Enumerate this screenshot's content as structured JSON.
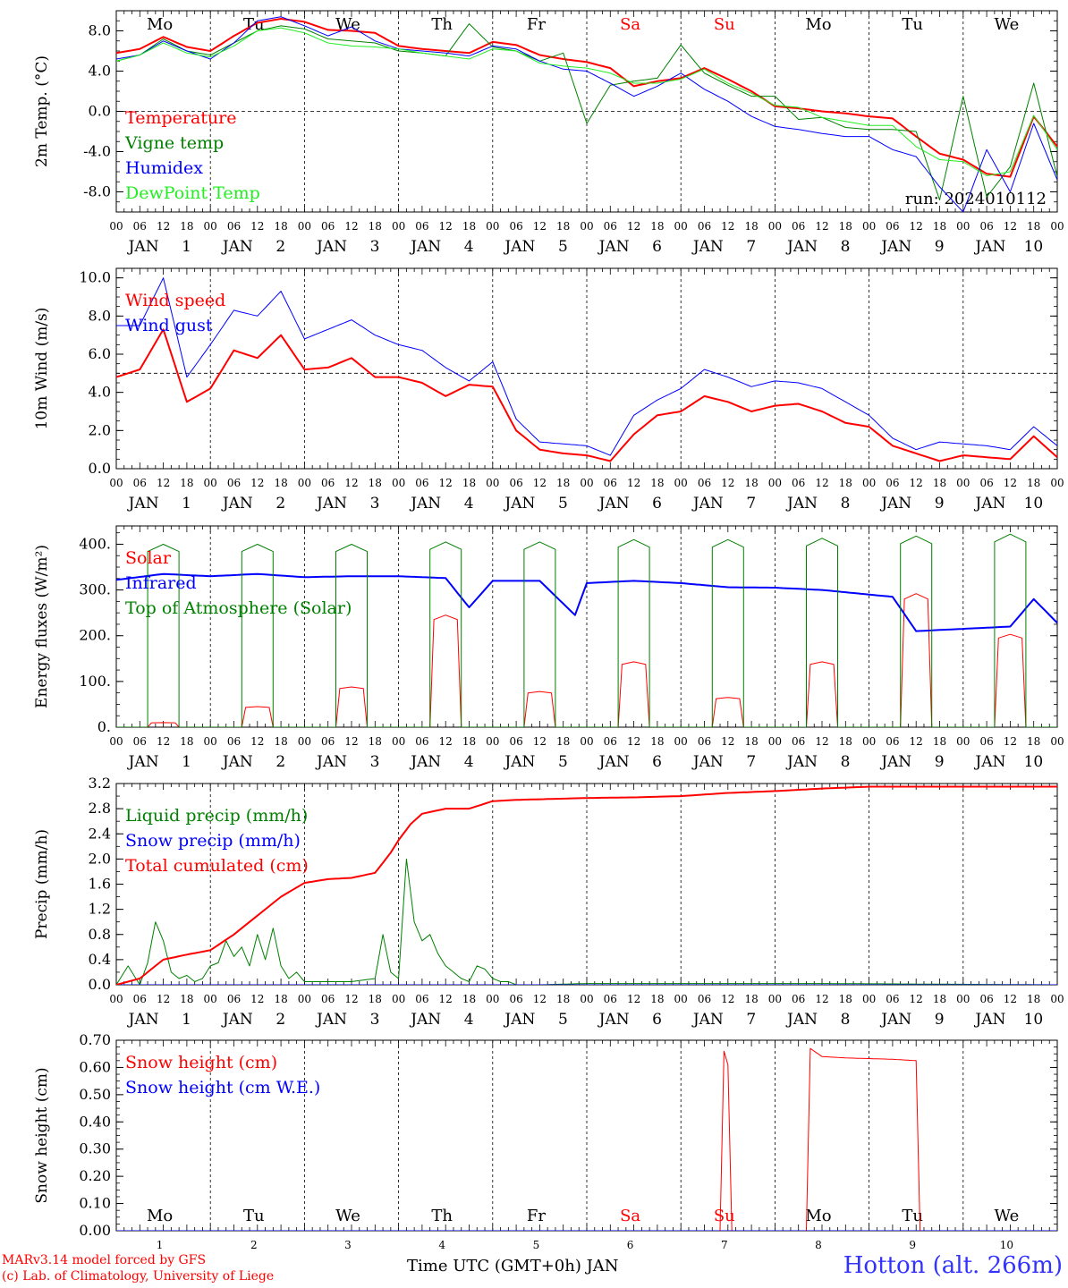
{
  "days": [
    {
      "dow": "Mo",
      "date": "1",
      "weekend": false
    },
    {
      "dow": "Tu",
      "date": "2",
      "weekend": false
    },
    {
      "dow": "We",
      "date": "3",
      "weekend": false
    },
    {
      "dow": "Th",
      "date": "4",
      "weekend": false
    },
    {
      "dow": "Fr",
      "date": "5",
      "weekend": false
    },
    {
      "dow": "Sa",
      "date": "6",
      "weekend": true
    },
    {
      "dow": "Su",
      "date": "7",
      "weekend": true
    },
    {
      "dow": "Mo",
      "date": "8",
      "weekend": false
    },
    {
      "dow": "Tu",
      "date": "9",
      "weekend": false
    },
    {
      "dow": "We",
      "date": "10",
      "weekend": false
    }
  ],
  "month": "JAN",
  "hour_ticks": [
    "00",
    "06",
    "12",
    "18"
  ],
  "hour_tick_end": "00",
  "colors": {
    "red": "#ff0000",
    "green": "#008000",
    "blue": "#0000ff",
    "lime": "#22ee22",
    "weekend": "#ff0000",
    "site": "#3333ff"
  },
  "footer": {
    "credit_line1": "MARv3.14 model forced by GFS",
    "credit_line2": "(c) Lab. of Climatology, University of Liege",
    "xaxis_title": "Time UTC (GMT+0h) JAN",
    "site": "Hotton (alt. 266m)"
  },
  "chart_data": [
    {
      "id": "temperature",
      "type": "line",
      "ylabel": "2m Temp. (°C)",
      "ylim": [
        -10,
        10
      ],
      "yticks": [
        -8,
        -4,
        0,
        4,
        8
      ],
      "ytick_labels": [
        "-8.0",
        "-4.0",
        "0.0",
        "4.0",
        "8.0"
      ],
      "dashed_ref": 0,
      "run_label": "run: 2024010112",
      "x_unit": "hours since 2024-01-01 00 UTC",
      "series": [
        {
          "name": "Temperature",
          "color": "red",
          "stroke": 2,
          "x": [
            0,
            6,
            12,
            18,
            24,
            30,
            36,
            42,
            48,
            54,
            60,
            66,
            72,
            78,
            84,
            90,
            96,
            102,
            108,
            114,
            120,
            126,
            132,
            138,
            144,
            150,
            156,
            162,
            168,
            174,
            180,
            186,
            192,
            198,
            204,
            210,
            216,
            222,
            228,
            234,
            240
          ],
          "y": [
            5.8,
            6.2,
            7.4,
            6.4,
            6.0,
            7.5,
            8.8,
            9.2,
            8.9,
            8.1,
            8.0,
            7.8,
            6.5,
            6.2,
            6.0,
            5.8,
            6.9,
            6.6,
            5.6,
            5.2,
            4.9,
            4.3,
            2.5,
            3.0,
            3.3,
            4.3,
            3.2,
            2.0,
            0.5,
            0.3,
            0.0,
            -0.2,
            -0.5,
            -0.7,
            -2.5,
            -4.2,
            -4.8,
            -6.2,
            -6.5,
            -0.5,
            -3.5
          ]
        },
        {
          "name": "Vigne temp",
          "color": "green",
          "stroke": 1,
          "x": [
            0,
            6,
            12,
            18,
            24,
            30,
            36,
            42,
            48,
            54,
            60,
            66,
            72,
            78,
            84,
            90,
            96,
            102,
            108,
            114,
            120,
            126,
            132,
            138,
            144,
            150,
            156,
            162,
            168,
            174,
            180,
            186,
            192,
            198,
            204,
            210,
            216,
            222,
            228,
            234,
            240
          ],
          "y": [
            5.0,
            5.6,
            7.2,
            6.0,
            5.6,
            6.8,
            8.0,
            8.5,
            8.2,
            7.2,
            7.0,
            6.8,
            6.0,
            5.8,
            5.5,
            8.7,
            6.4,
            6.0,
            5.0,
            5.8,
            -1.2,
            2.6,
            3.0,
            3.3,
            6.6,
            3.8,
            2.6,
            1.5,
            1.5,
            -0.8,
            -0.6,
            -1.6,
            -1.8,
            -1.8,
            -2.0,
            -8.8,
            1.5,
            -8.5,
            -5.5,
            2.8,
            -6.5
          ]
        },
        {
          "name": "Humidex",
          "color": "blue",
          "stroke": 1,
          "x": [
            0,
            6,
            12,
            18,
            24,
            30,
            36,
            42,
            48,
            54,
            60,
            66,
            72,
            78,
            84,
            90,
            96,
            102,
            108,
            114,
            120,
            126,
            132,
            138,
            144,
            150,
            156,
            162,
            168,
            174,
            180,
            186,
            192,
            198,
            204,
            210,
            216,
            222,
            228,
            234,
            240
          ],
          "y": [
            5.2,
            5.6,
            7.0,
            6.0,
            5.2,
            6.8,
            9.0,
            9.4,
            8.5,
            7.5,
            8.4,
            7.0,
            6.2,
            6.0,
            5.8,
            5.5,
            6.5,
            6.2,
            5.0,
            4.2,
            4.0,
            2.8,
            1.5,
            2.5,
            3.8,
            2.2,
            1.0,
            -0.5,
            -1.5,
            -1.8,
            -2.2,
            -2.5,
            -2.5,
            -3.8,
            -4.5,
            -7.5,
            -10.0,
            -3.8,
            -8.0,
            -1.2,
            -6.8
          ]
        },
        {
          "name": "DewPoint Temp",
          "color": "lime",
          "stroke": 1,
          "x": [
            0,
            6,
            12,
            18,
            24,
            30,
            36,
            42,
            48,
            54,
            60,
            66,
            72,
            78,
            84,
            90,
            96,
            102,
            108,
            114,
            120,
            126,
            132,
            138,
            144,
            150,
            156,
            162,
            168,
            174,
            180,
            186,
            192,
            198,
            204,
            210,
            216,
            222,
            228,
            234,
            240
          ],
          "y": [
            5.0,
            5.6,
            6.8,
            5.8,
            5.4,
            6.5,
            8.0,
            8.3,
            7.8,
            6.8,
            6.5,
            6.4,
            6.2,
            5.8,
            5.5,
            5.2,
            6.2,
            6.0,
            4.8,
            4.5,
            4.3,
            3.8,
            2.8,
            2.8,
            3.2,
            4.2,
            2.8,
            1.8,
            0.6,
            0.4,
            -0.6,
            -1.0,
            -1.4,
            -1.4,
            -3.5,
            -4.8,
            -5.0,
            -6.4,
            -6.0,
            -0.4,
            -3.8
          ]
        }
      ]
    },
    {
      "id": "wind",
      "type": "line",
      "ylabel": "10m Wind (m/s)",
      "ylim": [
        0,
        10.5
      ],
      "yticks": [
        0,
        2,
        4,
        6,
        8,
        10
      ],
      "ytick_labels": [
        "0.0",
        "2.0",
        "4.0",
        "6.0",
        "8.0",
        "10.0"
      ],
      "dashed_ref": 5,
      "x_unit": "hours since 2024-01-01 00 UTC",
      "series": [
        {
          "name": "Wind speed",
          "color": "red",
          "stroke": 2,
          "x": [
            0,
            6,
            12,
            18,
            24,
            30,
            36,
            42,
            48,
            54,
            60,
            66,
            72,
            78,
            84,
            90,
            96,
            102,
            108,
            114,
            120,
            126,
            132,
            138,
            144,
            150,
            156,
            162,
            168,
            174,
            180,
            186,
            192,
            198,
            204,
            210,
            216,
            222,
            228,
            234,
            240
          ],
          "y": [
            4.8,
            5.2,
            7.3,
            3.5,
            4.2,
            6.2,
            5.8,
            7.0,
            5.2,
            5.3,
            5.8,
            4.8,
            4.8,
            4.5,
            3.8,
            4.4,
            4.3,
            2.0,
            1.0,
            0.8,
            0.7,
            0.4,
            1.8,
            2.8,
            3.0,
            3.8,
            3.5,
            3.0,
            3.3,
            3.4,
            3.0,
            2.4,
            2.2,
            1.2,
            0.8,
            0.4,
            0.7,
            0.6,
            0.5,
            1.7,
            0.6
          ]
        },
        {
          "name": "Wind gust",
          "color": "blue",
          "stroke": 1,
          "x": [
            0,
            6,
            12,
            18,
            24,
            30,
            36,
            42,
            48,
            54,
            60,
            66,
            72,
            78,
            84,
            90,
            96,
            102,
            108,
            114,
            120,
            126,
            132,
            138,
            144,
            150,
            156,
            162,
            168,
            174,
            180,
            186,
            192,
            198,
            204,
            210,
            216,
            222,
            228,
            234,
            240
          ],
          "y": [
            7.5,
            7.5,
            10.0,
            4.8,
            6.5,
            8.3,
            8.0,
            9.3,
            6.8,
            7.3,
            7.8,
            7.0,
            6.5,
            6.2,
            5.3,
            4.6,
            5.6,
            2.6,
            1.4,
            1.3,
            1.2,
            0.7,
            2.8,
            3.6,
            4.2,
            5.2,
            4.8,
            4.3,
            4.6,
            4.5,
            4.2,
            3.5,
            2.8,
            1.6,
            1.0,
            1.4,
            1.3,
            1.2,
            1.0,
            2.2,
            1.2
          ]
        }
      ]
    },
    {
      "id": "energy",
      "type": "line",
      "ylabel": "Energy fluxes (W/m²)",
      "ylim": [
        0,
        440
      ],
      "yticks": [
        0,
        100,
        200,
        300,
        400
      ],
      "ytick_labels": [
        "0.",
        "100.",
        "200.",
        "300.",
        "400."
      ],
      "x_unit": "hours since 2024-01-01 00 UTC",
      "toa_peaks": [
        400,
        400,
        400,
        405,
        405,
        410,
        410,
        413,
        418,
        422
      ],
      "solar_peaks": [
        10,
        45,
        88,
        245,
        78,
        143,
        65,
        143,
        292,
        203
      ],
      "daylight_hours": [
        8,
        16
      ],
      "series": [
        {
          "name": "Solar",
          "color": "red",
          "stroke": 1
        },
        {
          "name": "Infrared",
          "color": "blue",
          "stroke": 2,
          "x": [
            0,
            12,
            24,
            36,
            48,
            60,
            72,
            84,
            90,
            96,
            108,
            117,
            120,
            132,
            144,
            156,
            168,
            180,
            192,
            198,
            204,
            216,
            228,
            234,
            240
          ],
          "y": [
            322,
            335,
            330,
            335,
            328,
            330,
            330,
            326,
            262,
            320,
            320,
            245,
            315,
            320,
            315,
            306,
            305,
            300,
            290,
            285,
            210,
            215,
            220,
            280,
            228
          ]
        },
        {
          "name": "Top of Atmosphere (Solar)",
          "color": "green",
          "stroke": 1
        }
      ]
    },
    {
      "id": "precip",
      "type": "line",
      "ylabel": "Precip (mm/h)",
      "ylim": [
        0,
        3.2
      ],
      "yticks": [
        0,
        0.4,
        0.8,
        1.2,
        1.6,
        2.0,
        2.4,
        2.8,
        3.2
      ],
      "ytick_labels": [
        "0.0",
        "0.4",
        "0.8",
        "1.2",
        "1.6",
        "2.0",
        "2.4",
        "2.8",
        "3.2"
      ],
      "x_unit": "hours since 2024-01-01 00 UTC",
      "series": [
        {
          "name": "Liquid precip (mm/h)",
          "color": "green",
          "stroke": 1,
          "x": [
            0,
            3,
            6,
            8,
            10,
            12,
            14,
            16,
            18,
            20,
            22,
            24,
            26,
            28,
            30,
            32,
            34,
            36,
            38,
            40,
            42,
            44,
            46,
            48,
            50,
            54,
            60,
            66,
            68,
            70,
            72,
            74,
            76,
            78,
            80,
            82,
            84,
            86,
            88,
            90,
            92,
            94,
            96,
            98,
            100,
            102,
            104,
            106,
            108,
            120,
            180,
            240
          ],
          "y": [
            0,
            0.3,
            0,
            0.35,
            1.0,
            0.7,
            0.2,
            0.1,
            0.15,
            0.05,
            0.1,
            0.3,
            0.35,
            0.7,
            0.45,
            0.6,
            0.3,
            0.8,
            0.4,
            0.9,
            0.3,
            0.1,
            0.2,
            0.05,
            0.05,
            0.05,
            0.05,
            0.1,
            0.8,
            0.2,
            0.1,
            2.0,
            1.0,
            0.7,
            0.8,
            0.5,
            0.3,
            0.2,
            0.1,
            0.05,
            0.3,
            0.25,
            0.1,
            0.05,
            0.05,
            0,
            0,
            0,
            0,
            0.02,
            0.02,
            0
          ]
        },
        {
          "name": "Snow precip (mm/h)",
          "color": "blue",
          "stroke": 1,
          "x": [
            0,
            240
          ],
          "y": [
            0,
            0
          ]
        },
        {
          "name": "Total cumulated (cm)",
          "color": "red",
          "stroke": 2,
          "x": [
            0,
            6,
            12,
            18,
            24,
            30,
            36,
            42,
            48,
            54,
            60,
            66,
            70,
            72,
            75,
            78,
            84,
            90,
            96,
            102,
            108,
            120,
            132,
            144,
            156,
            168,
            180,
            192,
            204,
            216,
            228,
            240
          ],
          "y": [
            0,
            0.1,
            0.4,
            0.48,
            0.55,
            0.8,
            1.1,
            1.4,
            1.62,
            1.68,
            1.7,
            1.78,
            2.1,
            2.3,
            2.55,
            2.72,
            2.8,
            2.8,
            2.92,
            2.94,
            2.95,
            2.97,
            2.98,
            3.0,
            3.05,
            3.08,
            3.12,
            3.15,
            3.15,
            3.15,
            3.15,
            3.15
          ]
        }
      ]
    },
    {
      "id": "snow",
      "type": "line",
      "ylabel": "Snow height (cm)",
      "ylim": [
        0,
        0.7
      ],
      "yticks": [
        0,
        0.1,
        0.2,
        0.3,
        0.4,
        0.5,
        0.6,
        0.7
      ],
      "ytick_labels": [
        "0.00",
        "0.10",
        "0.20",
        "0.30",
        "0.40",
        "0.50",
        "0.60",
        "0.70"
      ],
      "x_unit": "hours since 2024-01-01 00 UTC",
      "series": [
        {
          "name": "Snow height (cm)",
          "color": "red",
          "stroke": 1,
          "x": [
            0,
            154,
            155,
            156,
            157,
            158,
            176,
            177,
            180,
            186,
            198,
            204,
            205,
            206,
            240
          ],
          "y": [
            0,
            0,
            0.66,
            0.61,
            0.0,
            0,
            0,
            0.67,
            0.64,
            0.635,
            0.63,
            0.625,
            0,
            0,
            0
          ]
        },
        {
          "name": "Snow height (cm W.E.)",
          "color": "blue",
          "stroke": 1,
          "x": [
            0,
            240
          ],
          "y": [
            0,
            0
          ]
        }
      ]
    }
  ]
}
